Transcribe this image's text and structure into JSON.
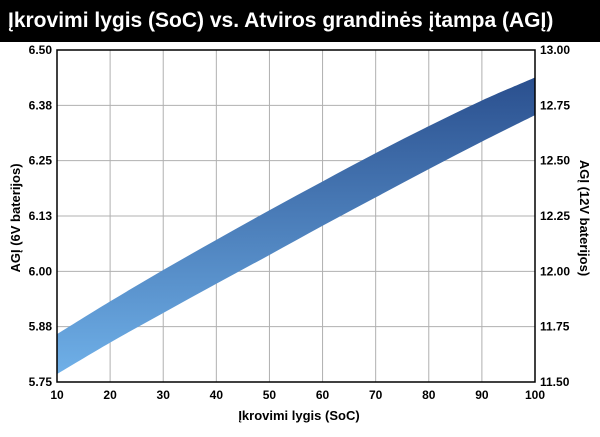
{
  "colors": {
    "title_background": "#000000",
    "title_text": "#ffffff",
    "band_top": "#2a4f8e",
    "band_bottom": "#6fb0e8",
    "grid": "#b0b0b0"
  },
  "chart_data": {
    "type": "area",
    "title": "Įkrovimi lygis (SoC) vs. Atviros grandinės įtampa (AGĮ)",
    "xlabel": "Įkrovimi lygis (SoC)",
    "ylabel_left": "AGĮ (6V baterijos)",
    "ylabel_right": "AGĮ (12V baterijos)",
    "xlim": [
      10,
      100
    ],
    "ylim_left": [
      5.75,
      6.5
    ],
    "ylim_right": [
      11.5,
      13.0
    ],
    "x_ticks": [
      "10",
      "20",
      "30",
      "40",
      "50",
      "60",
      "70",
      "80",
      "90",
      "100"
    ],
    "y_ticks_left": [
      "6.50",
      "6.38",
      "6.25",
      "6.13",
      "6.00",
      "5.88",
      "5.75"
    ],
    "y_ticks_right": [
      "13.00",
      "12.75",
      "12.50",
      "12.25",
      "12.00",
      "11.75",
      "11.50"
    ],
    "grid": true,
    "x": [
      10,
      20,
      30,
      40,
      50,
      60,
      70,
      80,
      90,
      100
    ],
    "series": [
      {
        "values_upper": [
          5.858,
          5.932,
          6.003,
          6.071,
          6.138,
          6.203,
          6.267,
          6.328,
          6.386,
          6.438
        ]
      },
      {
        "values_lower": [
          5.768,
          5.839,
          5.906,
          5.972,
          6.037,
          6.103,
          6.167,
          6.231,
          6.293,
          6.353
        ]
      }
    ]
  }
}
